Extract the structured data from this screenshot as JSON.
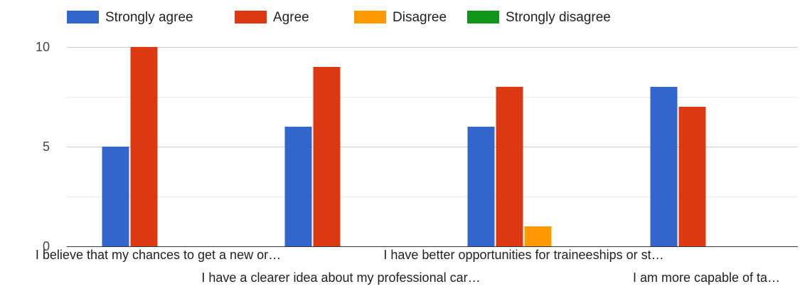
{
  "chart_data": {
    "type": "bar",
    "categories": [
      "I believe that my chances to get a new or…",
      "I have a clearer idea about my professional car…",
      "I have better opportunities for traineeships or st…",
      "I am more capable of ta…"
    ],
    "series": [
      {
        "name": "Strongly agree",
        "color": "#3366cc",
        "values": [
          5,
          6,
          6,
          8
        ]
      },
      {
        "name": "Agree",
        "color": "#dc3912",
        "values": [
          10,
          9,
          8,
          7
        ]
      },
      {
        "name": "Disagree",
        "color": "#ff9900",
        "values": [
          0,
          0,
          1,
          0
        ]
      },
      {
        "name": "Strongly disagree",
        "color": "#109618",
        "values": [
          0,
          0,
          0,
          0
        ]
      }
    ],
    "y_ticks": [
      "0",
      "5",
      "10"
    ],
    "ylim": [
      0,
      12
    ],
    "grid": true,
    "legend_position": "top-left",
    "title": "",
    "xlabel": "",
    "ylabel": ""
  }
}
